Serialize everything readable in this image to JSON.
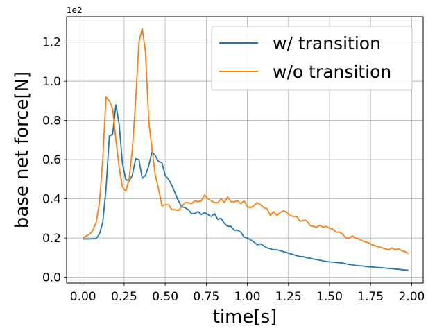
{
  "chart_data": {
    "type": "line",
    "xlabel": "time[s]",
    "ylabel": "base net force[N]",
    "offset_label": "1e2",
    "xlim": [
      -0.1,
      2.07
    ],
    "ylim": [
      -0.03,
      1.33
    ],
    "grid": true,
    "legend": "top-right",
    "x_ticks": [
      0,
      0.25,
      0.5,
      0.75,
      1.0,
      1.25,
      1.5,
      1.75,
      2.0
    ],
    "x_tick_labels": [
      "0.00",
      "0.25",
      "0.50",
      "0.75",
      "1.00",
      "1.25",
      "1.50",
      "1.75",
      "2.00"
    ],
    "y_ticks": [
      0,
      0.2,
      0.4,
      0.6,
      0.8,
      1.0,
      1.2
    ],
    "y_tick_labels": [
      "0.0",
      "0.2",
      "0.4",
      "0.6",
      "0.8",
      "1.0",
      "1.2"
    ],
    "series": [
      {
        "name": "w/ transition",
        "color": "#1f77b4",
        "x": [
          0.0,
          0.04,
          0.08,
          0.1,
          0.12,
          0.14,
          0.16,
          0.18,
          0.2,
          0.22,
          0.24,
          0.26,
          0.28,
          0.3,
          0.32,
          0.34,
          0.36,
          0.38,
          0.4,
          0.42,
          0.44,
          0.46,
          0.48,
          0.5,
          0.52,
          0.54,
          0.56,
          0.58,
          0.6,
          0.62,
          0.64,
          0.66,
          0.68,
          0.7,
          0.72,
          0.74,
          0.76,
          0.78,
          0.8,
          0.82,
          0.84,
          0.86,
          0.88,
          0.9,
          0.92,
          0.94,
          0.96,
          0.98,
          1.0,
          1.02,
          1.04,
          1.06,
          1.08,
          1.1,
          1.12,
          1.14,
          1.16,
          1.18,
          1.2,
          1.22,
          1.24,
          1.26,
          1.28,
          1.3,
          1.32,
          1.34,
          1.36,
          1.38,
          1.4,
          1.42,
          1.44,
          1.46,
          1.48,
          1.5,
          1.52,
          1.54,
          1.56,
          1.58,
          1.6,
          1.62,
          1.64,
          1.66,
          1.68,
          1.7,
          1.72,
          1.74,
          1.76,
          1.78,
          1.8,
          1.82,
          1.84,
          1.86,
          1.88,
          1.9,
          1.92,
          1.94,
          1.96,
          1.98
        ],
        "y": [
          0.195,
          0.195,
          0.197,
          0.22,
          0.28,
          0.45,
          0.72,
          0.73,
          0.88,
          0.78,
          0.58,
          0.5,
          0.49,
          0.52,
          0.605,
          0.6,
          0.505,
          0.52,
          0.57,
          0.64,
          0.62,
          0.59,
          0.585,
          0.52,
          0.5,
          0.47,
          0.43,
          0.39,
          0.36,
          0.355,
          0.345,
          0.325,
          0.325,
          0.335,
          0.32,
          0.33,
          0.32,
          0.31,
          0.325,
          0.295,
          0.3,
          0.275,
          0.26,
          0.26,
          0.24,
          0.24,
          0.23,
          0.205,
          0.2,
          0.19,
          0.18,
          0.165,
          0.17,
          0.16,
          0.15,
          0.145,
          0.14,
          0.14,
          0.135,
          0.13,
          0.125,
          0.12,
          0.115,
          0.11,
          0.105,
          0.105,
          0.1,
          0.097,
          0.093,
          0.09,
          0.087,
          0.083,
          0.08,
          0.078,
          0.077,
          0.076,
          0.073,
          0.072,
          0.068,
          0.065,
          0.063,
          0.06,
          0.058,
          0.057,
          0.055,
          0.053,
          0.052,
          0.05,
          0.049,
          0.048,
          0.046,
          0.045,
          0.043,
          0.042,
          0.04,
          0.038,
          0.037,
          0.035
        ]
      },
      {
        "name": "w/o transition",
        "color": "#ff7f0e",
        "x": [
          0.0,
          0.02,
          0.04,
          0.06,
          0.08,
          0.1,
          0.12,
          0.14,
          0.16,
          0.18,
          0.2,
          0.22,
          0.24,
          0.26,
          0.28,
          0.3,
          0.32,
          0.34,
          0.36,
          0.38,
          0.4,
          0.42,
          0.44,
          0.46,
          0.48,
          0.5,
          0.52,
          0.54,
          0.56,
          0.58,
          0.6,
          0.62,
          0.64,
          0.66,
          0.68,
          0.7,
          0.72,
          0.74,
          0.76,
          0.78,
          0.8,
          0.82,
          0.84,
          0.86,
          0.88,
          0.9,
          0.92,
          0.94,
          0.96,
          0.98,
          1.0,
          1.02,
          1.04,
          1.06,
          1.08,
          1.1,
          1.12,
          1.14,
          1.16,
          1.18,
          1.2,
          1.22,
          1.24,
          1.26,
          1.28,
          1.3,
          1.32,
          1.34,
          1.36,
          1.38,
          1.4,
          1.42,
          1.44,
          1.46,
          1.48,
          1.5,
          1.52,
          1.54,
          1.56,
          1.58,
          1.6,
          1.62,
          1.64,
          1.66,
          1.68,
          1.7,
          1.72,
          1.74,
          1.76,
          1.78,
          1.8,
          1.82,
          1.84,
          1.86,
          1.88,
          1.9,
          1.92,
          1.94,
          1.96,
          1.98
        ],
        "y": [
          0.2,
          0.21,
          0.22,
          0.24,
          0.28,
          0.38,
          0.6,
          0.92,
          0.9,
          0.86,
          0.7,
          0.56,
          0.46,
          0.44,
          0.5,
          0.65,
          0.9,
          1.2,
          1.27,
          1.15,
          0.8,
          0.65,
          0.52,
          0.45,
          0.365,
          0.37,
          0.37,
          0.345,
          0.345,
          0.34,
          0.36,
          0.38,
          0.38,
          0.375,
          0.39,
          0.385,
          0.39,
          0.42,
          0.4,
          0.39,
          0.38,
          0.38,
          0.4,
          0.38,
          0.41,
          0.385,
          0.385,
          0.39,
          0.375,
          0.39,
          0.36,
          0.355,
          0.365,
          0.38,
          0.37,
          0.355,
          0.35,
          0.315,
          0.335,
          0.315,
          0.33,
          0.34,
          0.33,
          0.315,
          0.31,
          0.31,
          0.285,
          0.29,
          0.29,
          0.265,
          0.26,
          0.255,
          0.265,
          0.255,
          0.26,
          0.25,
          0.245,
          0.23,
          0.23,
          0.22,
          0.2,
          0.2,
          0.21,
          0.2,
          0.195,
          0.185,
          0.18,
          0.175,
          0.165,
          0.16,
          0.155,
          0.15,
          0.145,
          0.14,
          0.15,
          0.14,
          0.145,
          0.135,
          0.13,
          0.12
        ]
      }
    ]
  }
}
